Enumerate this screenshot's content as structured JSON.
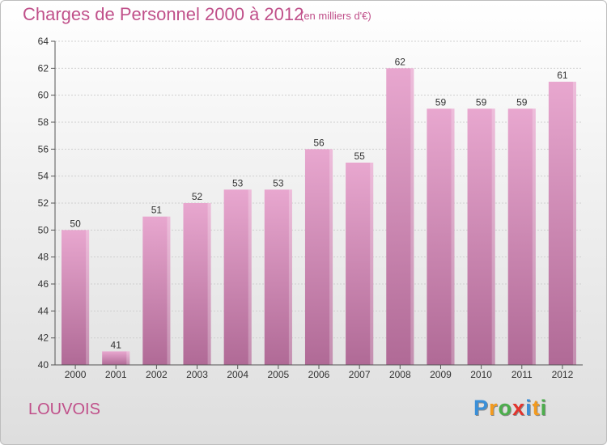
{
  "header": {
    "title": "Charges de Personnel 2000 à 2012",
    "unit": "(en milliers d'€)"
  },
  "footer": {
    "city": "LOUVOIS",
    "logo_letters": [
      {
        "char": "P",
        "color": "#3a8fd8"
      },
      {
        "char": "r",
        "color": "#f39a1e"
      },
      {
        "char": "o",
        "color": "#4cae4c"
      },
      {
        "char": "x",
        "color": "#e2342d"
      },
      {
        "char": "i",
        "color": "#3a8fd8"
      },
      {
        "char": "t",
        "color": "#f39a1e"
      },
      {
        "char": "i",
        "color": "#4cae4c"
      }
    ]
  },
  "chart_data": {
    "type": "bar",
    "categories": [
      "2000",
      "2001",
      "2002",
      "2003",
      "2004",
      "2005",
      "2006",
      "2007",
      "2008",
      "2009",
      "2010",
      "2011",
      "2012"
    ],
    "values": [
      50,
      41,
      51,
      52,
      53,
      53,
      56,
      55,
      62,
      59,
      59,
      59,
      61
    ],
    "data_labels": [
      "50",
      "41",
      "51",
      "52",
      "53",
      "53",
      "56",
      "55",
      "62",
      "59",
      "59",
      "59",
      "61"
    ],
    "ylim": [
      40,
      64
    ],
    "yticks": [
      40,
      42,
      44,
      46,
      48,
      50,
      52,
      54,
      56,
      58,
      60,
      62,
      64
    ],
    "grid": true,
    "bar_color_top": "#e8a7cf",
    "bar_color_bottom": "#b06a96"
  }
}
